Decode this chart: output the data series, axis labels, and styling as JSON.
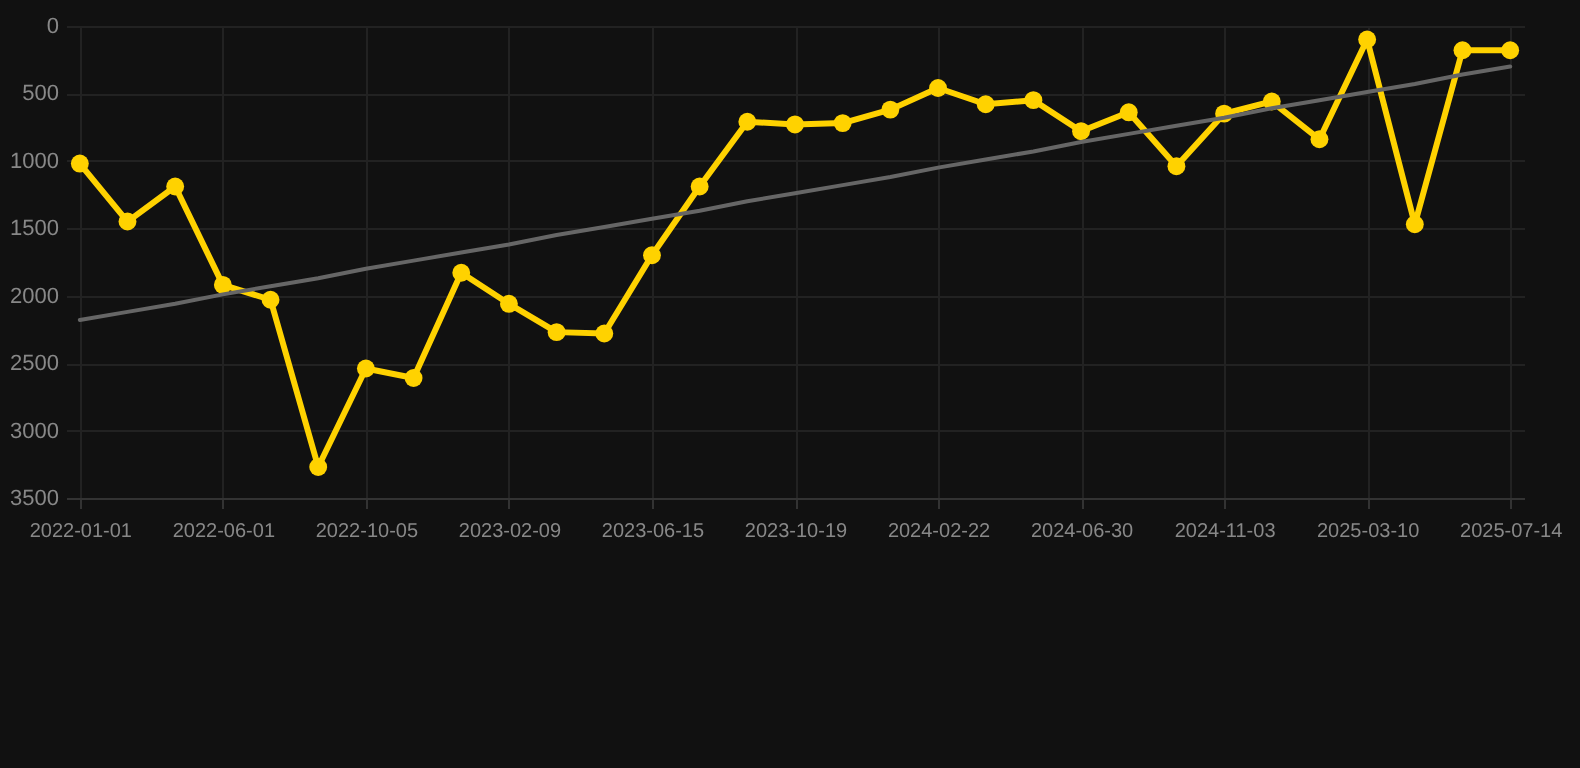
{
  "chart_data": {
    "type": "line",
    "categories": [
      "2022-01-01",
      null,
      null,
      "2022-06-01",
      null,
      null,
      "2022-10-05",
      null,
      null,
      "2023-02-09",
      null,
      null,
      "2023-06-15",
      null,
      null,
      "2023-10-19",
      null,
      null,
      "2024-02-22",
      null,
      null,
      "2024-06-30",
      null,
      null,
      "2024-11-03",
      null,
      null,
      "2025-03-10",
      null,
      null,
      "2025-07-14"
    ],
    "series": [
      {
        "color": "#ffd200",
        "values": [
          1020,
          1450,
          1190,
          1920,
          2030,
          3270,
          2540,
          2610,
          1830,
          2060,
          2270,
          2280,
          1700,
          1190,
          710,
          730,
          720,
          620,
          460,
          580,
          550,
          780,
          640,
          1040,
          650,
          560,
          840,
          100,
          1470,
          180,
          180
        ],
        "marker": "circle"
      },
      {
        "type": "line",
        "color": "#666666",
        "values": [
          2180,
          2120,
          2060,
          1990,
          1930,
          1870,
          1800,
          1740,
          1680,
          1620,
          1550,
          1490,
          1430,
          1370,
          1300,
          1240,
          1180,
          1120,
          1050,
          990,
          930,
          860,
          800,
          740,
          680,
          610,
          550,
          490,
          430,
          360,
          300
        ],
        "marker": "none"
      }
    ],
    "ylim": [
      3500,
      0
    ],
    "yticks": [
      0,
      500,
      1000,
      1500,
      2000,
      2500,
      3000,
      3500
    ],
    "grid": true
  }
}
